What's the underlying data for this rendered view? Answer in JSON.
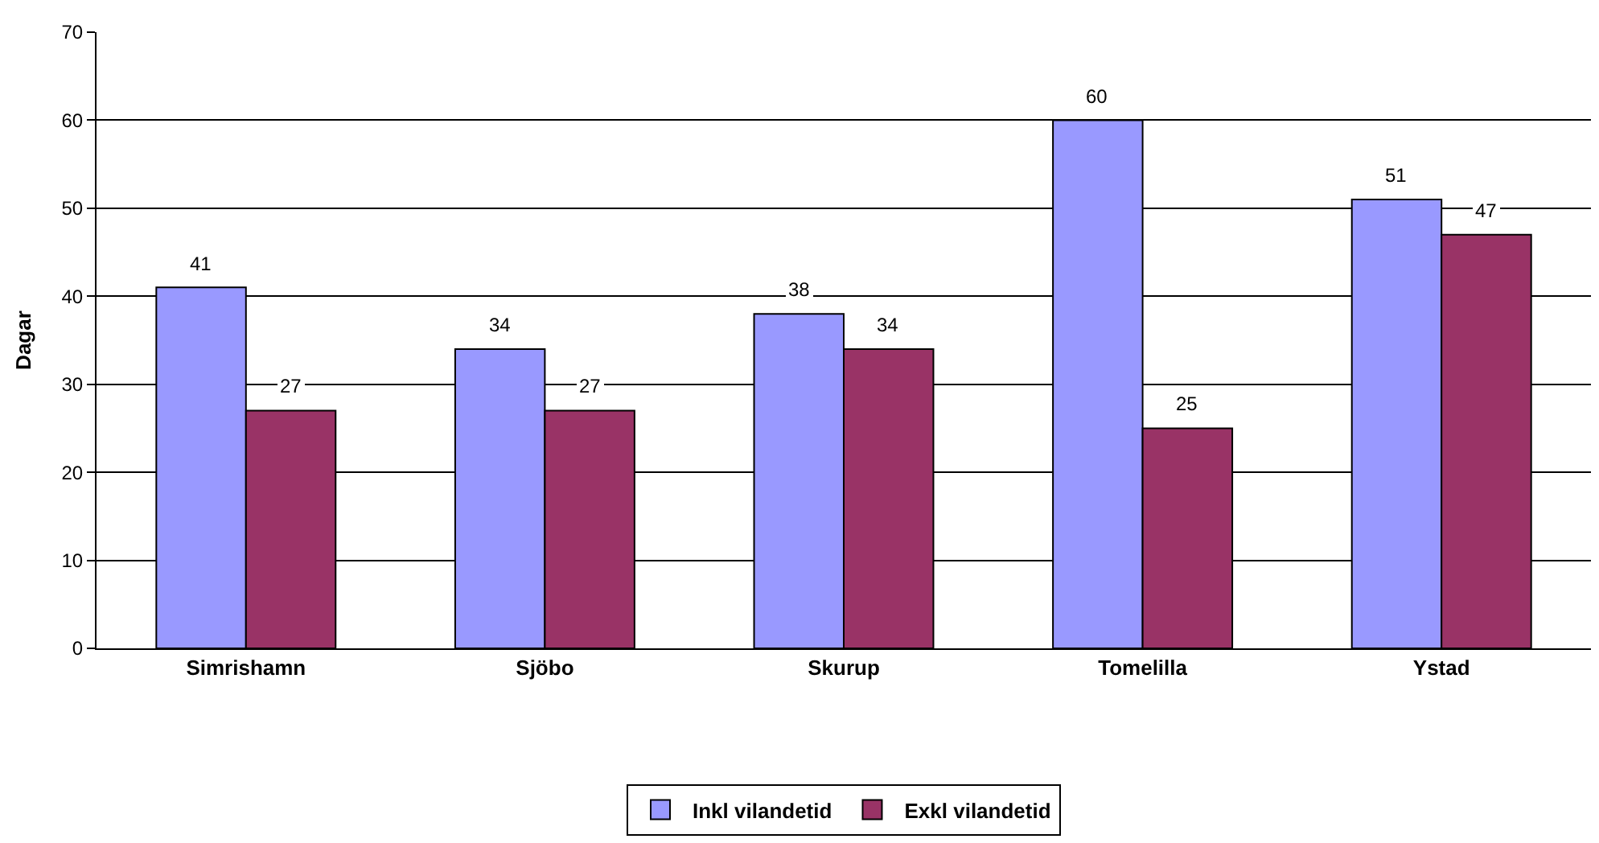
{
  "chart_data": {
    "type": "bar",
    "ylabel": "Dagar",
    "categories": [
      "Simrishamn",
      "Sjöbo",
      "Skurup",
      "Tomelilla",
      "Ystad"
    ],
    "series": [
      {
        "name": "Inkl vilandetid",
        "color": "#9999ff",
        "values": [
          41,
          34,
          38,
          60,
          51
        ]
      },
      {
        "name": "Exkl vilandetid",
        "color": "#993366",
        "values": [
          27,
          27,
          34,
          25,
          47
        ]
      }
    ],
    "ylim": [
      0,
      70
    ],
    "yticks": [
      0,
      10,
      20,
      30,
      40,
      50,
      60,
      70
    ],
    "grid": "y",
    "legend": "bottom",
    "data_labels": true
  }
}
